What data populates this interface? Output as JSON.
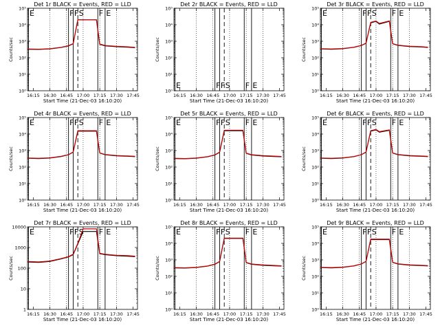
{
  "chart_data": [
    {
      "type": "line",
      "title": "Det 1r BLACK = Events, RED = LLD",
      "xlabel": "Start Time (21-Dec-03 16:10:20)",
      "ylabel": "Counts/sec",
      "yscale": "log",
      "ylim": [
        1,
        100000
      ],
      "yticks": [
        "10⁰",
        "10¹",
        "10²",
        "10³",
        "10⁴",
        "10⁵"
      ],
      "xticks": [
        "16:15",
        "16:30",
        "16:45",
        "17:00",
        "17:15",
        "17:30",
        "17:45"
      ],
      "series": [
        {
          "color": "#000000",
          "x": [
            16.17,
            16.33,
            16.5,
            16.67,
            16.78,
            16.85,
            16.92,
            17.2,
            17.25,
            17.33,
            17.5,
            17.67,
            17.78
          ],
          "y": [
            330,
            320,
            340,
            420,
            520,
            700,
            20000,
            20000,
            650,
            530,
            470,
            440,
            410
          ]
        },
        {
          "color": "#cc0000",
          "x": [
            16.17,
            16.33,
            16.5,
            16.67,
            16.78,
            16.85,
            16.92,
            17.2,
            17.25,
            17.33,
            17.5,
            17.67,
            17.78
          ],
          "y": [
            340,
            330,
            350,
            430,
            540,
            720,
            20000,
            20000,
            680,
            550,
            490,
            460,
            430
          ]
        }
      ],
      "markers": [
        {
          "label": "E",
          "x": 16.18,
          "style": "solid"
        },
        {
          "label": "F",
          "x": 16.78,
          "style": "solid"
        },
        {
          "label": "F",
          "x": 16.85,
          "style": "solid"
        },
        {
          "label": "S",
          "x": 16.92,
          "style": "dashed"
        },
        {
          "label": "F",
          "x": 17.22,
          "style": "solid"
        },
        {
          "label": "E",
          "x": 17.33,
          "style": "solid"
        }
      ]
    },
    {
      "type": "line",
      "title": "Det 2r BLACK = Events, RED = LLD",
      "xlabel": "Start Time (21-Dec-03 16:10:20)",
      "ylabel": "Counts/sec",
      "yscale": "log",
      "ylim": [
        1,
        100000
      ],
      "yticks": [
        "10⁰",
        "10¹",
        "10²",
        "10³",
        "10⁴",
        "10⁵"
      ],
      "xticks": [
        "16:15",
        "16:30",
        "16:45",
        "17:00",
        "17:15",
        "17:30",
        "17:45"
      ],
      "series": [],
      "markers": [
        {
          "label": "E",
          "x": 16.18,
          "style": "solid"
        },
        {
          "label": "F",
          "x": 16.78,
          "style": "solid"
        },
        {
          "label": "F",
          "x": 16.85,
          "style": "solid"
        },
        {
          "label": "S",
          "x": 16.92,
          "style": "dashed"
        },
        {
          "label": "F",
          "x": 17.22,
          "style": "solid"
        },
        {
          "label": "E",
          "x": 17.33,
          "style": "solid"
        }
      ]
    },
    {
      "type": "line",
      "title": "Det 3r BLACK = Events, RED = LLD",
      "xlabel": "Start Time (21-Dec-03 16:10:20)",
      "ylabel": "Counts/sec",
      "yscale": "log",
      "ylim": [
        1,
        100000
      ],
      "yticks": [
        "10⁰",
        "10¹",
        "10²",
        "10³",
        "10⁴",
        "10⁵"
      ],
      "xticks": [
        "16:15",
        "16:30",
        "16:45",
        "17:00",
        "17:15",
        "17:30",
        "17:45"
      ],
      "series": [
        {
          "color": "#000000",
          "x": [
            16.17,
            16.33,
            16.5,
            16.67,
            16.78,
            16.85,
            16.92,
            17.0,
            17.05,
            17.2,
            17.25,
            17.33,
            17.5,
            17.67,
            17.78
          ],
          "y": [
            340,
            330,
            350,
            430,
            550,
            750,
            13000,
            16000,
            11000,
            16000,
            700,
            560,
            480,
            450,
            420
          ]
        },
        {
          "color": "#cc0000",
          "x": [
            16.17,
            16.33,
            16.5,
            16.67,
            16.78,
            16.85,
            16.92,
            17.0,
            17.05,
            17.2,
            17.25,
            17.33,
            17.5,
            17.67,
            17.78
          ],
          "y": [
            350,
            340,
            360,
            440,
            560,
            770,
            14000,
            17000,
            12000,
            17000,
            720,
            580,
            500,
            470,
            440
          ]
        }
      ],
      "markers": [
        {
          "label": "E",
          "x": 16.18,
          "style": "solid"
        },
        {
          "label": "F",
          "x": 16.78,
          "style": "solid"
        },
        {
          "label": "F",
          "x": 16.85,
          "style": "solid"
        },
        {
          "label": "S",
          "x": 16.92,
          "style": "dashed"
        },
        {
          "label": "F",
          "x": 17.22,
          "style": "solid"
        },
        {
          "label": "E",
          "x": 17.33,
          "style": "solid"
        }
      ]
    },
    {
      "type": "line",
      "title": "Det 4r BLACK = Events, RED = LLD",
      "xlabel": "Start Time (21-Dec-03 16:10:20)",
      "ylabel": "Counts/sec",
      "yscale": "log",
      "ylim": [
        1,
        100000
      ],
      "yticks": [
        "10⁰",
        "10¹",
        "10²",
        "10³",
        "10⁴",
        "10⁵"
      ],
      "xticks": [
        "16:15",
        "16:30",
        "16:45",
        "17:00",
        "17:15",
        "17:30",
        "17:45"
      ],
      "series": [
        {
          "color": "#000000",
          "x": [
            16.17,
            16.33,
            16.5,
            16.67,
            16.78,
            16.85,
            16.92,
            17.2,
            17.25,
            17.33,
            17.5,
            17.67,
            17.78
          ],
          "y": [
            340,
            330,
            350,
            440,
            560,
            800,
            15000,
            15000,
            700,
            560,
            480,
            450,
            430
          ]
        },
        {
          "color": "#cc0000",
          "x": [
            16.17,
            16.33,
            16.5,
            16.67,
            16.78,
            16.85,
            16.92,
            17.2,
            17.25,
            17.33,
            17.5,
            17.67,
            17.78
          ],
          "y": [
            350,
            340,
            360,
            450,
            570,
            820,
            16000,
            16000,
            720,
            580,
            500,
            470,
            450
          ]
        }
      ],
      "markers": [
        {
          "label": "E",
          "x": 16.18,
          "style": "solid"
        },
        {
          "label": "F",
          "x": 16.78,
          "style": "solid"
        },
        {
          "label": "F",
          "x": 16.85,
          "style": "solid"
        },
        {
          "label": "S",
          "x": 16.92,
          "style": "dashed"
        },
        {
          "label": "F",
          "x": 17.22,
          "style": "solid"
        },
        {
          "label": "E",
          "x": 17.33,
          "style": "solid"
        }
      ]
    },
    {
      "type": "line",
      "title": "Det 5r BLACK = Events, RED = LLD",
      "xlabel": "Start Time (21-Dec-03 16:10:20)",
      "ylabel": "Counts/sec",
      "yscale": "log",
      "ylim": [
        1,
        100000
      ],
      "yticks": [
        "10⁰",
        "10¹",
        "10²",
        "10³",
        "10⁴",
        "10⁵"
      ],
      "xticks": [
        "16:15",
        "16:30",
        "16:45",
        "17:00",
        "17:15",
        "17:30",
        "17:45"
      ],
      "series": [
        {
          "color": "#000000",
          "x": [
            16.17,
            16.33,
            16.5,
            16.67,
            16.78,
            16.85,
            16.92,
            17.2,
            17.25,
            17.33,
            17.5,
            17.67,
            17.78
          ],
          "y": [
            330,
            320,
            340,
            420,
            540,
            780,
            16000,
            16000,
            680,
            540,
            470,
            440,
            420
          ]
        },
        {
          "color": "#cc0000",
          "x": [
            16.17,
            16.33,
            16.5,
            16.67,
            16.78,
            16.85,
            16.92,
            17.2,
            17.25,
            17.33,
            17.5,
            17.67,
            17.78
          ],
          "y": [
            340,
            330,
            350,
            430,
            550,
            800,
            17000,
            17000,
            700,
            560,
            490,
            460,
            440
          ]
        }
      ],
      "markers": [
        {
          "label": "E",
          "x": 16.18,
          "style": "solid"
        },
        {
          "label": "F",
          "x": 16.78,
          "style": "solid"
        },
        {
          "label": "F",
          "x": 16.85,
          "style": "solid"
        },
        {
          "label": "S",
          "x": 16.92,
          "style": "dashed"
        },
        {
          "label": "F",
          "x": 17.22,
          "style": "solid"
        },
        {
          "label": "E",
          "x": 17.33,
          "style": "solid"
        }
      ]
    },
    {
      "type": "line",
      "title": "Det 6r BLACK = Events, RED = LLD",
      "xlabel": "Start Time (21-Dec-03 16:10:20)",
      "ylabel": "Counts/sec",
      "yscale": "log",
      "ylim": [
        1,
        100000
      ],
      "yticks": [
        "10⁰",
        "10¹",
        "10²",
        "10³",
        "10⁴",
        "10⁵"
      ],
      "xticks": [
        "16:15",
        "16:30",
        "16:45",
        "17:00",
        "17:15",
        "17:30",
        "17:45"
      ],
      "series": [
        {
          "color": "#000000",
          "x": [
            16.17,
            16.33,
            16.5,
            16.67,
            16.78,
            16.85,
            16.92,
            17.0,
            17.05,
            17.2,
            17.25,
            17.33,
            17.5,
            17.67,
            17.78
          ],
          "y": [
            340,
            330,
            350,
            430,
            560,
            800,
            15000,
            18000,
            13000,
            17000,
            700,
            560,
            480,
            450,
            430
          ]
        },
        {
          "color": "#cc0000",
          "x": [
            16.17,
            16.33,
            16.5,
            16.67,
            16.78,
            16.85,
            16.92,
            17.0,
            17.05,
            17.2,
            17.25,
            17.33,
            17.5,
            17.67,
            17.78
          ],
          "y": [
            350,
            340,
            360,
            440,
            570,
            820,
            16000,
            19000,
            14000,
            18000,
            720,
            580,
            500,
            470,
            450
          ]
        }
      ],
      "markers": [
        {
          "label": "E",
          "x": 16.18,
          "style": "solid"
        },
        {
          "label": "F",
          "x": 16.78,
          "style": "solid"
        },
        {
          "label": "F",
          "x": 16.85,
          "style": "solid"
        },
        {
          "label": "S",
          "x": 16.92,
          "style": "dashed"
        },
        {
          "label": "F",
          "x": 17.22,
          "style": "solid"
        },
        {
          "label": "E",
          "x": 17.33,
          "style": "solid"
        }
      ]
    },
    {
      "type": "line",
      "title": "Det 7r BLACK = Events, RED = LLD",
      "xlabel": "Start Time (21-Dec-03 16:10:20)",
      "ylabel": "Counts/sec",
      "yscale": "log",
      "ylim": [
        1,
        10000
      ],
      "yticks": [
        "1",
        "10",
        "100",
        "1000",
        "10000"
      ],
      "xticks": [
        "16:15",
        "16:30",
        "16:45",
        "17:00",
        "17:15",
        "17:30",
        "17:45"
      ],
      "series": [
        {
          "color": "#000000",
          "x": [
            16.17,
            16.33,
            16.5,
            16.67,
            16.78,
            16.85,
            16.92,
            17.0,
            17.2,
            17.25,
            17.33,
            17.5,
            17.67,
            17.78
          ],
          "y": [
            200,
            190,
            210,
            280,
            350,
            450,
            1500,
            6000,
            6000,
            500,
            450,
            400,
            380,
            360
          ]
        },
        {
          "color": "#cc0000",
          "x": [
            16.17,
            16.33,
            16.5,
            16.67,
            16.78,
            16.85,
            16.92,
            17.0,
            17.2,
            17.25,
            17.33,
            17.5,
            17.67,
            17.78
          ],
          "y": [
            210,
            200,
            220,
            290,
            360,
            470,
            1600,
            8000,
            8000,
            520,
            470,
            420,
            400,
            380
          ]
        }
      ],
      "markers": [
        {
          "label": "E",
          "x": 16.18,
          "style": "solid"
        },
        {
          "label": "F",
          "x": 16.78,
          "style": "solid"
        },
        {
          "label": "F",
          "x": 16.85,
          "style": "solid"
        },
        {
          "label": "S",
          "x": 16.92,
          "style": "dashed"
        },
        {
          "label": "F",
          "x": 17.22,
          "style": "solid"
        },
        {
          "label": "E",
          "x": 17.33,
          "style": "solid"
        }
      ]
    },
    {
      "type": "line",
      "title": "Det 8r BLACK = Events, RED = LLD",
      "xlabel": "Start Time (21-Dec-03 16:10:20)",
      "ylabel": "Counts/sec",
      "yscale": "log",
      "ylim": [
        1,
        100000
      ],
      "yticks": [
        "10⁰",
        "10¹",
        "10²",
        "10³",
        "10⁴",
        "10⁵"
      ],
      "xticks": [
        "16:15",
        "16:30",
        "16:45",
        "17:00",
        "17:15",
        "17:30",
        "17:45"
      ],
      "series": [
        {
          "color": "#000000",
          "x": [
            16.17,
            16.33,
            16.5,
            16.67,
            16.78,
            16.85,
            16.92,
            17.2,
            17.25,
            17.33,
            17.5,
            17.67,
            17.78
          ],
          "y": [
            330,
            320,
            340,
            420,
            540,
            780,
            20000,
            20000,
            680,
            540,
            470,
            440,
            420
          ]
        },
        {
          "color": "#cc0000",
          "x": [
            16.17,
            16.33,
            16.5,
            16.67,
            16.78,
            16.85,
            16.92,
            17.2,
            17.25,
            17.33,
            17.5,
            17.67,
            17.78
          ],
          "y": [
            340,
            330,
            350,
            430,
            550,
            800,
            21000,
            21000,
            700,
            560,
            490,
            460,
            440
          ]
        }
      ],
      "markers": [
        {
          "label": "E",
          "x": 16.18,
          "style": "solid"
        },
        {
          "label": "F",
          "x": 16.78,
          "style": "solid"
        },
        {
          "label": "F",
          "x": 16.85,
          "style": "solid"
        },
        {
          "label": "S",
          "x": 16.92,
          "style": "dashed"
        },
        {
          "label": "F",
          "x": 17.22,
          "style": "solid"
        },
        {
          "label": "E",
          "x": 17.33,
          "style": "solid"
        }
      ]
    },
    {
      "type": "line",
      "title": "Det 9r BLACK = Events, RED = LLD",
      "xlabel": "Start Time (21-Dec-03 16:10:20)",
      "ylabel": "Counts/sec",
      "yscale": "log",
      "ylim": [
        1,
        100000
      ],
      "yticks": [
        "10⁰",
        "10¹",
        "10²",
        "10³",
        "10⁴",
        "10⁵"
      ],
      "xticks": [
        "16:15",
        "16:30",
        "16:45",
        "17:00",
        "17:15",
        "17:30",
        "17:45"
      ],
      "series": [
        {
          "color": "#000000",
          "x": [
            16.17,
            16.33,
            16.5,
            16.67,
            16.78,
            16.85,
            16.92,
            17.2,
            17.25,
            17.33,
            17.5,
            17.67,
            17.78
          ],
          "y": [
            340,
            330,
            350,
            430,
            560,
            800,
            17000,
            17000,
            700,
            560,
            480,
            450,
            430
          ]
        },
        {
          "color": "#cc0000",
          "x": [
            16.17,
            16.33,
            16.5,
            16.67,
            16.78,
            16.85,
            16.92,
            17.2,
            17.25,
            17.33,
            17.5,
            17.67,
            17.78
          ],
          "y": [
            350,
            340,
            360,
            440,
            570,
            820,
            18000,
            18000,
            720,
            580,
            500,
            470,
            450
          ]
        }
      ],
      "markers": [
        {
          "label": "E",
          "x": 16.18,
          "style": "solid"
        },
        {
          "label": "F",
          "x": 16.78,
          "style": "solid"
        },
        {
          "label": "F",
          "x": 16.85,
          "style": "solid"
        },
        {
          "label": "S",
          "x": 16.92,
          "style": "dashed"
        },
        {
          "label": "F",
          "x": 17.22,
          "style": "solid"
        },
        {
          "label": "E",
          "x": 17.33,
          "style": "solid"
        }
      ]
    }
  ]
}
